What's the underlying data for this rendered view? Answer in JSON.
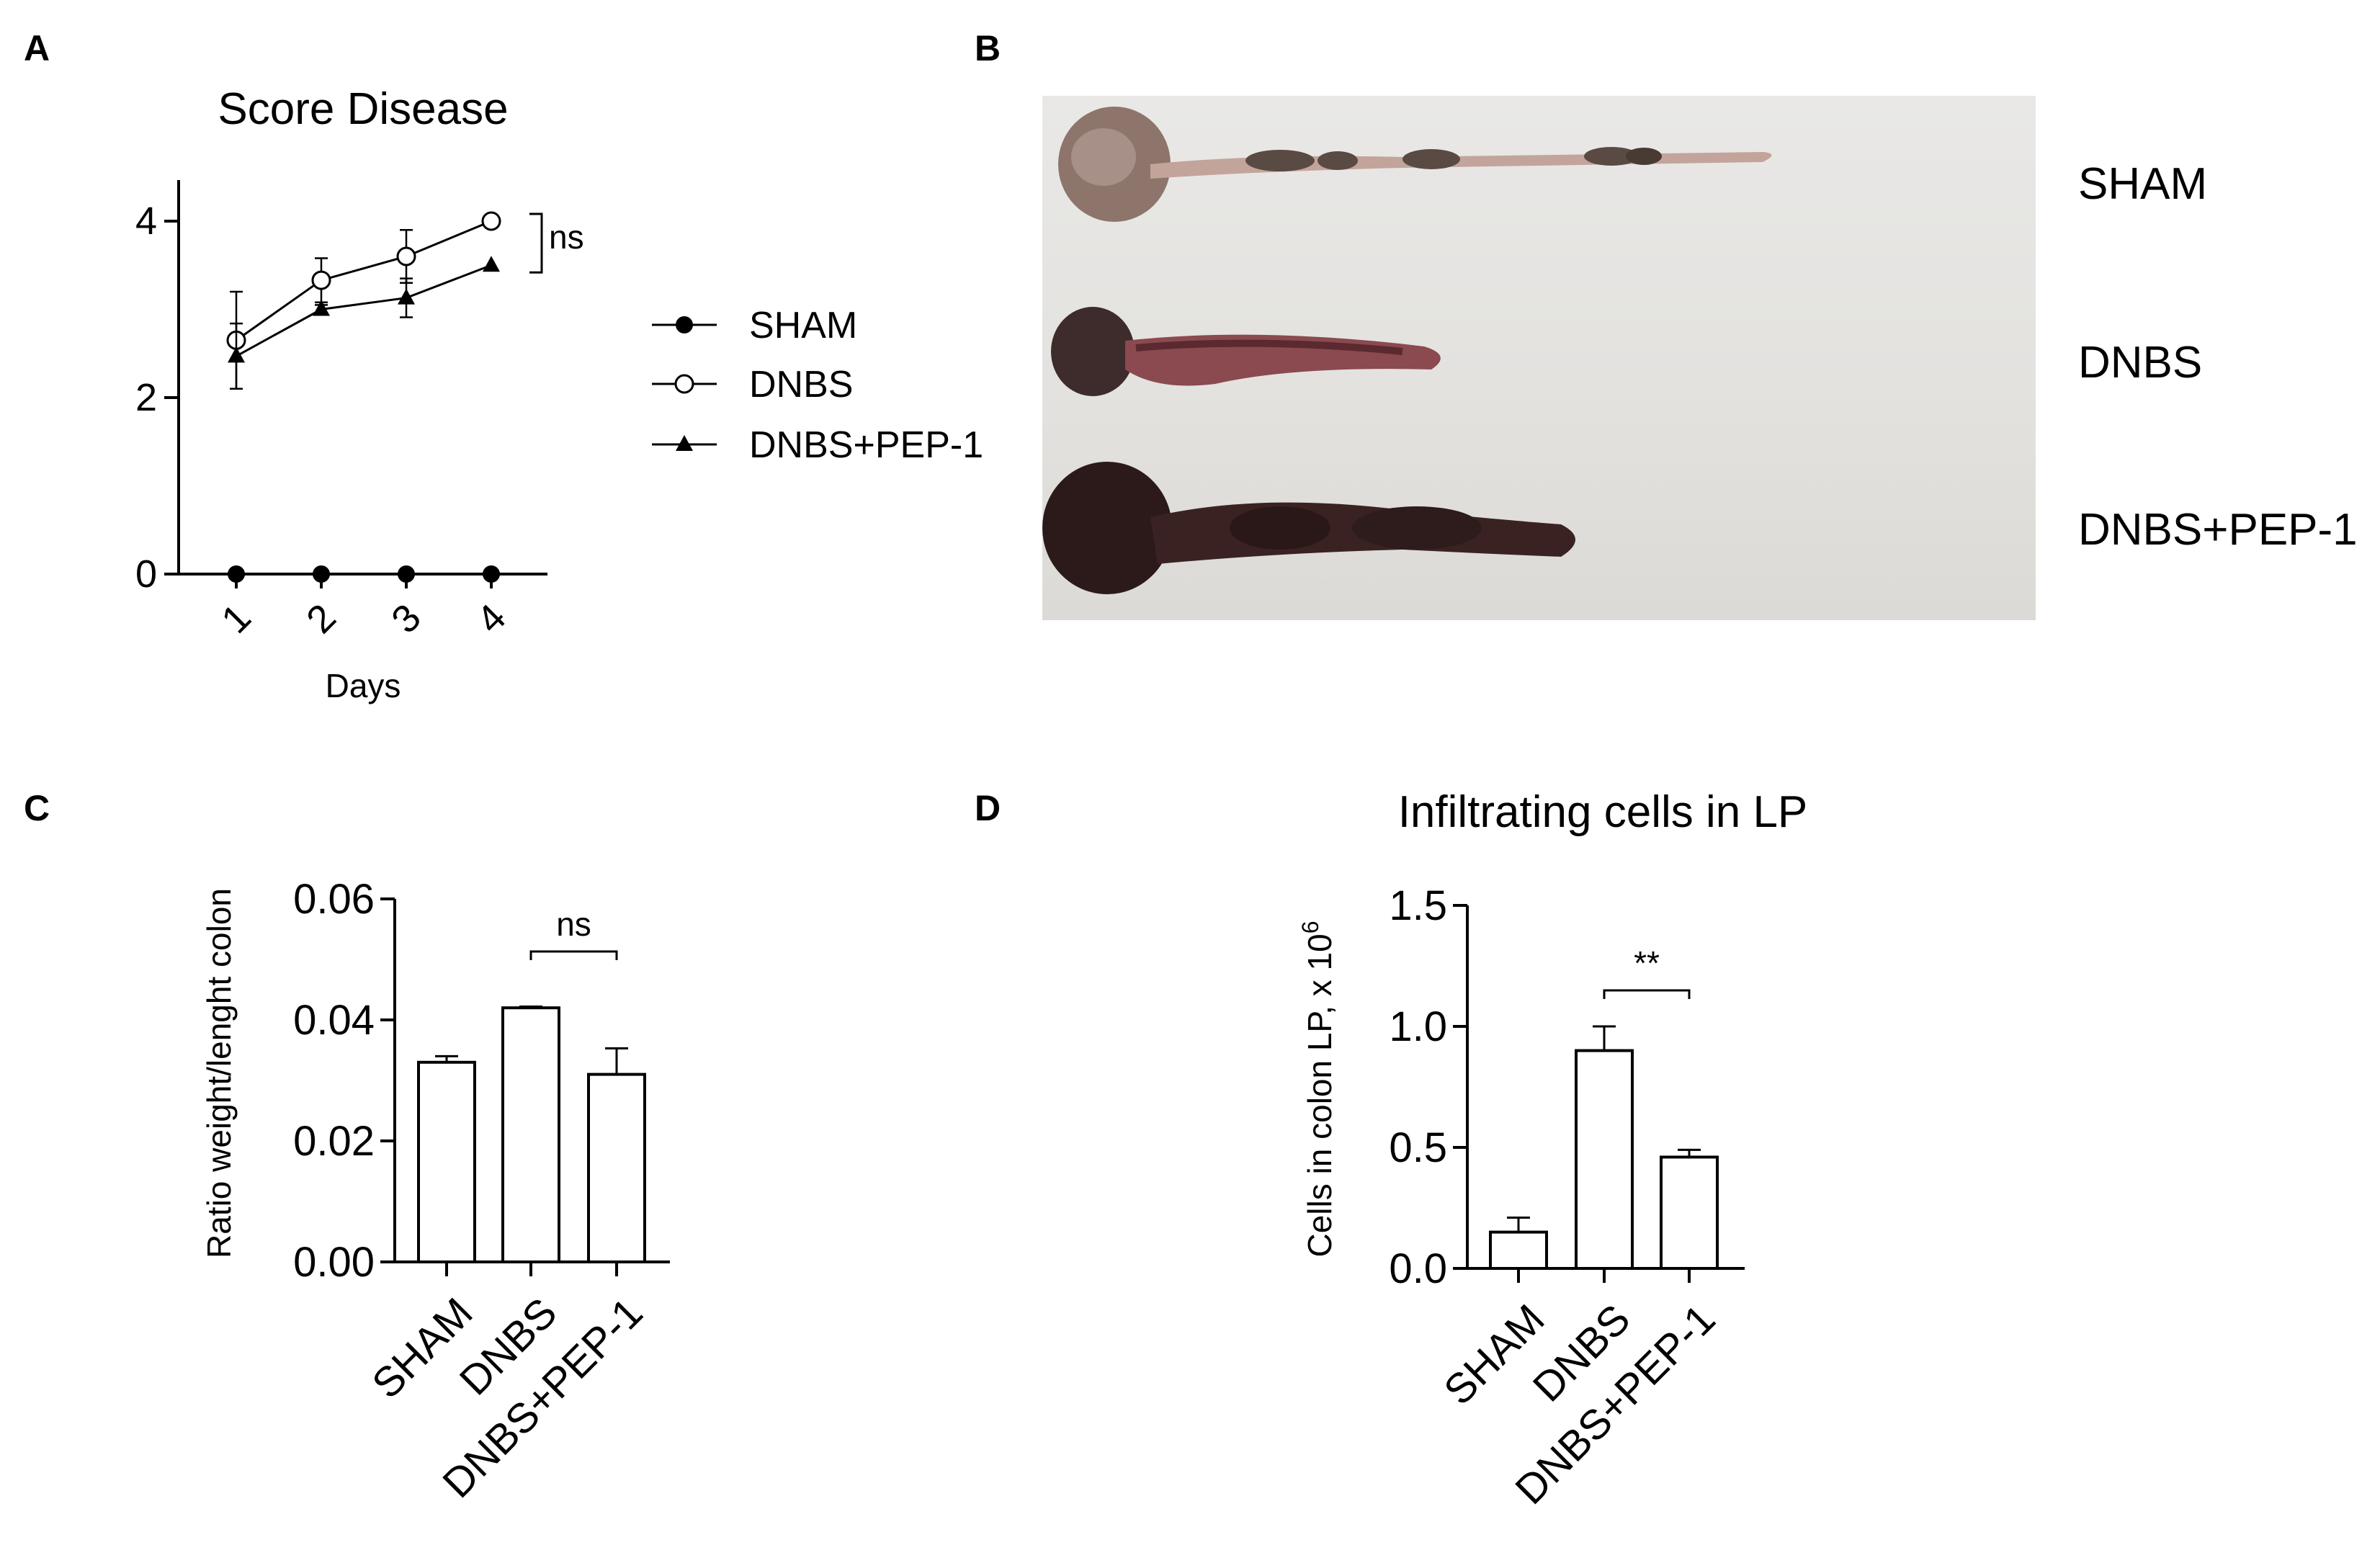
{
  "panels": {
    "a": {
      "letter": "A"
    },
    "b": {
      "letter": "B"
    },
    "c": {
      "letter": "C"
    },
    "d": {
      "letter": "D"
    }
  },
  "chart_data": [
    {
      "panel": "A",
      "type": "line",
      "title": "Score Disease",
      "xlabel": "Days",
      "ylabel": "",
      "x": [
        1,
        2,
        3,
        4
      ],
      "ylim": [
        0,
        4.4
      ],
      "yticks": [
        0,
        2,
        4
      ],
      "series": [
        {
          "name": "SHAM",
          "marker": "filled-circle",
          "values": [
            0,
            0,
            0,
            0
          ],
          "errors": [
            0,
            0,
            0,
            0
          ]
        },
        {
          "name": "DNBS",
          "marker": "open-circle",
          "values": [
            2.65,
            3.33,
            3.6,
            4.0
          ],
          "errors": [
            0.55,
            0.25,
            0.3,
            0
          ]
        },
        {
          "name": "DNBS+PEP-1",
          "marker": "filled-triangle",
          "values": [
            2.47,
            3.0,
            3.13,
            3.5
          ],
          "errors": [
            0.37,
            0.05,
            0.22,
            0
          ]
        }
      ],
      "annotations": [
        {
          "text": "ns",
          "between": [
            "DNBS",
            "DNBS+PEP-1"
          ]
        }
      ],
      "legend": "right"
    },
    {
      "panel": "C",
      "type": "bar",
      "title": "",
      "xlabel": "",
      "ylabel": "Ratio weight/lenght colon",
      "categories": [
        "SHAM",
        "DNBS",
        "DNBS+PEP-1"
      ],
      "values": [
        0.033,
        0.042,
        0.031
      ],
      "errors": [
        0.001,
        0.0002,
        0.0043
      ],
      "ylim": [
        0,
        0.06
      ],
      "yticks": [
        "0.00",
        "0.02",
        "0.04",
        "0.06"
      ],
      "annotations": [
        {
          "text": "ns",
          "between": [
            "DNBS",
            "DNBS+PEP-1"
          ]
        }
      ]
    },
    {
      "panel": "D",
      "type": "bar",
      "title": "Infiltrating cells in LP",
      "xlabel": "",
      "ylabel": "Cells in colon LP, x 10",
      "ylabel_sup": "6",
      "categories": [
        "SHAM",
        "DNBS",
        "DNBS+PEP-1"
      ],
      "values": [
        0.15,
        0.9,
        0.46
      ],
      "errors": [
        0.06,
        0.1,
        0.03
      ],
      "ylim": [
        0,
        1.5
      ],
      "yticks": [
        "0.0",
        "0.5",
        "1.0",
        "1.5"
      ],
      "annotations": [
        {
          "text": "**",
          "between": [
            "DNBS",
            "DNBS+PEP-1"
          ]
        }
      ]
    }
  ],
  "photo": {
    "labels": [
      "SHAM",
      "DNBS",
      "DNBS+PEP-1"
    ],
    "colors": {
      "sham": "#a0857c",
      "dnbs": "#5a3a3a",
      "pep": "#3b2424"
    }
  }
}
